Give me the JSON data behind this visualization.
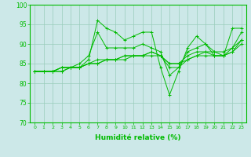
{
  "xlabel": "Humidité relative (%)",
  "xlim": [
    -0.5,
    23.5
  ],
  "ylim": [
    70,
    100
  ],
  "yticks": [
    70,
    75,
    80,
    85,
    90,
    95,
    100
  ],
  "xticks": [
    0,
    1,
    2,
    3,
    4,
    5,
    6,
    7,
    8,
    9,
    10,
    11,
    12,
    13,
    14,
    15,
    16,
    17,
    18,
    19,
    20,
    21,
    22,
    23
  ],
  "bg_color": "#cce8e8",
  "line_color": "#00bb00",
  "grid_color": "#99ccbb",
  "series": [
    [
      83,
      83,
      83,
      83,
      84,
      84,
      86,
      96,
      94,
      93,
      91,
      92,
      93,
      93,
      84,
      77,
      83,
      89,
      92,
      90,
      87,
      87,
      94,
      94
    ],
    [
      83,
      83,
      83,
      84,
      84,
      85,
      87,
      93,
      89,
      89,
      89,
      89,
      90,
      89,
      88,
      82,
      84,
      88,
      89,
      90,
      88,
      87,
      89,
      93
    ],
    [
      83,
      83,
      83,
      83,
      84,
      84,
      85,
      86,
      86,
      86,
      87,
      87,
      87,
      88,
      87,
      84,
      84,
      86,
      87,
      88,
      87,
      87,
      88,
      91
    ],
    [
      83,
      83,
      83,
      84,
      84,
      84,
      85,
      85,
      86,
      86,
      86,
      87,
      87,
      87,
      87,
      85,
      85,
      86,
      87,
      87,
      87,
      87,
      88,
      90
    ],
    [
      83,
      83,
      83,
      84,
      84,
      84,
      85,
      85,
      86,
      86,
      87,
      87,
      87,
      88,
      87,
      85,
      85,
      87,
      88,
      88,
      88,
      88,
      89,
      91
    ]
  ]
}
